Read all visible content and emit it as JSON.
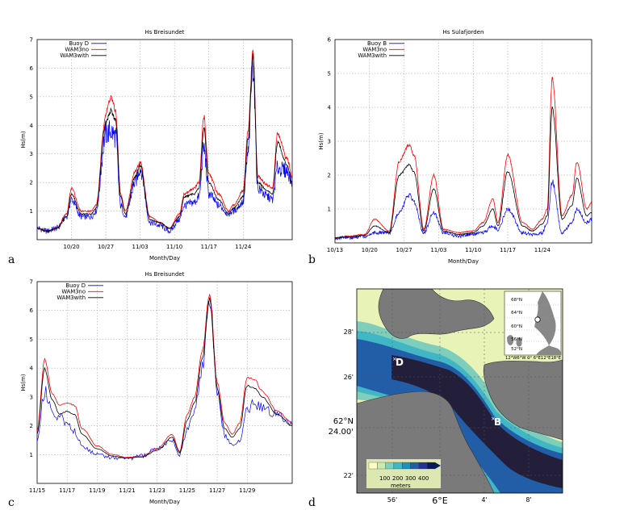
{
  "panels": [
    {
      "letter": "a",
      "chart_data": {
        "type": "line",
        "title": "Hs Breisundet",
        "xlabel": "Month/Day",
        "ylabel": "Hs(m)",
        "xlim": [
          "2023-10-13",
          "2023-12-04"
        ],
        "ylim": [
          0,
          7
        ],
        "yticks": [
          1,
          2,
          3,
          4,
          5,
          6,
          7
        ],
        "xticks": [
          "10/20",
          "10/27",
          "11/03",
          "11/10",
          "11/17",
          "11/24"
        ],
        "grid": true,
        "legend_position": "top-left",
        "series": [
          {
            "name": "Buoy  D",
            "color": "#0000ff",
            "noise": 0.35,
            "x": [
              "2023-10-13",
              "2023-10-15",
              "2023-10-17",
              "2023-10-19",
              "2023-10-20",
              "2023-10-22",
              "2023-10-24",
              "2023-10-25",
              "2023-10-27",
              "2023-10-28",
              "2023-10-29",
              "2023-10-30",
              "2023-10-31",
              "2023-11-02",
              "2023-11-03",
              "2023-11-05",
              "2023-11-07",
              "2023-11-09",
              "2023-11-11",
              "2023-11-12",
              "2023-11-14",
              "2023-11-15",
              "2023-11-16",
              "2023-11-17",
              "2023-11-19",
              "2023-11-21",
              "2023-11-22",
              "2023-11-24",
              "2023-11-25",
              "2023-11-26",
              "2023-11-27",
              "2023-11-29",
              "2023-11-30",
              "2023-12-01",
              "2023-12-03",
              "2023-12-04"
            ],
            "y": [
              0.4,
              0.3,
              0.4,
              0.8,
              1.4,
              0.8,
              0.8,
              1.0,
              3.7,
              3.8,
              3.6,
              1.2,
              0.8,
              2.0,
              2.5,
              0.6,
              0.5,
              0.3,
              0.7,
              1.2,
              1.3,
              1.5,
              3.2,
              1.6,
              1.2,
              0.9,
              1.0,
              1.3,
              3.0,
              6.2,
              1.8,
              1.5,
              1.4,
              2.5,
              2.4,
              2.0
            ]
          },
          {
            "name": "WAM3no",
            "color": "#ff0000",
            "noise": 0.08,
            "x": [
              "2023-10-13",
              "2023-10-15",
              "2023-10-17",
              "2023-10-19",
              "2023-10-20",
              "2023-10-22",
              "2023-10-24",
              "2023-10-25",
              "2023-10-27",
              "2023-10-28",
              "2023-10-29",
              "2023-10-30",
              "2023-10-31",
              "2023-11-02",
              "2023-11-03",
              "2023-11-05",
              "2023-11-07",
              "2023-11-09",
              "2023-11-11",
              "2023-11-12",
              "2023-11-14",
              "2023-11-15",
              "2023-11-16",
              "2023-11-17",
              "2023-11-19",
              "2023-11-21",
              "2023-11-22",
              "2023-11-24",
              "2023-11-25",
              "2023-11-26",
              "2023-11-27",
              "2023-11-29",
              "2023-11-30",
              "2023-12-01",
              "2023-12-03",
              "2023-12-04"
            ],
            "y": [
              0.4,
              0.3,
              0.4,
              0.9,
              1.8,
              1.0,
              1.0,
              1.2,
              4.4,
              5.0,
              4.5,
              1.6,
              1.0,
              2.4,
              2.7,
              0.8,
              0.6,
              0.4,
              0.9,
              1.6,
              1.8,
              2.0,
              4.3,
              2.3,
              1.6,
              1.0,
              1.2,
              1.7,
              3.8,
              6.6,
              2.2,
              1.9,
              1.8,
              3.7,
              2.8,
              2.2
            ]
          },
          {
            "name": "WAM3with",
            "color": "#000000",
            "noise": 0.06,
            "x": [
              "2023-10-13",
              "2023-10-15",
              "2023-10-17",
              "2023-10-19",
              "2023-10-20",
              "2023-10-22",
              "2023-10-24",
              "2023-10-25",
              "2023-10-27",
              "2023-10-28",
              "2023-10-29",
              "2023-10-30",
              "2023-10-31",
              "2023-11-02",
              "2023-11-03",
              "2023-11-05",
              "2023-11-07",
              "2023-11-09",
              "2023-11-11",
              "2023-11-12",
              "2023-11-14",
              "2023-11-15",
              "2023-11-16",
              "2023-11-17",
              "2023-11-19",
              "2023-11-21",
              "2023-11-22",
              "2023-11-24",
              "2023-11-25",
              "2023-11-26",
              "2023-11-27",
              "2023-11-29",
              "2023-11-30",
              "2023-12-01",
              "2023-12-03",
              "2023-12-04"
            ],
            "y": [
              0.4,
              0.3,
              0.4,
              0.8,
              1.6,
              0.9,
              0.9,
              1.1,
              4.1,
              4.5,
              4.2,
              1.5,
              0.9,
              2.2,
              2.6,
              0.7,
              0.6,
              0.4,
              0.8,
              1.5,
              1.6,
              1.8,
              3.9,
              2.0,
              1.4,
              0.9,
              1.1,
              1.5,
              3.5,
              6.4,
              2.0,
              1.7,
              1.6,
              3.4,
              2.6,
              2.0
            ]
          }
        ]
      }
    },
    {
      "letter": "b",
      "chart_data": {
        "type": "line",
        "title": "Hs Sulafjorden",
        "xlabel": "Month/Day",
        "ylabel": "Hs(m)",
        "xlim": [
          "2023-10-13",
          "2023-12-04"
        ],
        "ylim": [
          0,
          6
        ],
        "yticks": [
          1,
          2,
          3,
          4,
          5,
          6
        ],
        "xticks": [
          "10/13",
          "10/20",
          "10/27",
          "11/03",
          "11/10",
          "11/17",
          "11/24"
        ],
        "grid": true,
        "legend_position": "top-left",
        "series": [
          {
            "name": "Buoy  B",
            "color": "#0000ff",
            "noise": 0.18,
            "x": [
              "2023-10-13",
              "2023-10-16",
              "2023-10-19",
              "2023-10-21",
              "2023-10-24",
              "2023-10-26",
              "2023-10-28",
              "2023-10-29",
              "2023-10-31",
              "2023-11-02",
              "2023-11-04",
              "2023-11-07",
              "2023-11-10",
              "2023-11-12",
              "2023-11-14",
              "2023-11-15",
              "2023-11-17",
              "2023-11-20",
              "2023-11-22",
              "2023-11-24",
              "2023-11-25",
              "2023-11-26",
              "2023-11-28",
              "2023-11-30",
              "2023-12-01",
              "2023-12-03",
              "2023-12-04"
            ],
            "y": [
              0.15,
              0.15,
              0.2,
              0.3,
              0.3,
              0.9,
              1.4,
              1.2,
              0.3,
              0.9,
              0.3,
              0.2,
              0.25,
              0.3,
              0.5,
              0.4,
              1.0,
              0.3,
              0.25,
              0.3,
              0.6,
              1.8,
              0.3,
              0.6,
              1.0,
              0.6,
              0.7
            ]
          },
          {
            "name": "WAM3no",
            "color": "#ff0000",
            "noise": 0.05,
            "x": [
              "2023-10-13",
              "2023-10-16",
              "2023-10-19",
              "2023-10-21",
              "2023-10-24",
              "2023-10-26",
              "2023-10-28",
              "2023-10-29",
              "2023-10-31",
              "2023-11-02",
              "2023-11-04",
              "2023-11-07",
              "2023-11-10",
              "2023-11-12",
              "2023-11-14",
              "2023-11-15",
              "2023-11-17",
              "2023-11-20",
              "2023-11-22",
              "2023-11-24",
              "2023-11-25",
              "2023-11-26",
              "2023-11-28",
              "2023-11-30",
              "2023-12-01",
              "2023-12-03",
              "2023-12-04"
            ],
            "y": [
              0.15,
              0.2,
              0.25,
              0.7,
              0.35,
              2.4,
              2.9,
              2.6,
              0.4,
              2.0,
              0.4,
              0.3,
              0.35,
              0.6,
              1.3,
              0.6,
              2.6,
              0.6,
              0.4,
              0.7,
              1.0,
              4.9,
              0.8,
              1.4,
              2.4,
              1.0,
              1.2
            ]
          },
          {
            "name": "WAM3with",
            "color": "#000000",
            "noise": 0.04,
            "x": [
              "2023-10-13",
              "2023-10-16",
              "2023-10-19",
              "2023-10-21",
              "2023-10-24",
              "2023-10-26",
              "2023-10-28",
              "2023-10-29",
              "2023-10-31",
              "2023-11-02",
              "2023-11-04",
              "2023-11-07",
              "2023-11-10",
              "2023-11-12",
              "2023-11-14",
              "2023-11-15",
              "2023-11-17",
              "2023-11-20",
              "2023-11-22",
              "2023-11-24",
              "2023-11-25",
              "2023-11-26",
              "2023-11-28",
              "2023-11-30",
              "2023-12-01",
              "2023-12-03",
              "2023-12-04"
            ],
            "y": [
              0.15,
              0.18,
              0.22,
              0.5,
              0.3,
              2.0,
              2.3,
              2.1,
              0.35,
              1.6,
              0.35,
              0.25,
              0.3,
              0.5,
              1.0,
              0.5,
              2.1,
              0.5,
              0.35,
              0.55,
              0.8,
              4.0,
              0.7,
              1.1,
              1.9,
              0.8,
              0.9
            ]
          }
        ]
      }
    },
    {
      "letter": "c",
      "chart_data": {
        "type": "line",
        "title": "Hs Breisundet",
        "xlabel": "Month/Day",
        "ylabel": "Hs(m)",
        "xlim": [
          "2023-11-15",
          "2023-12-02"
        ],
        "ylim": [
          0,
          7
        ],
        "yticks": [
          1,
          2,
          3,
          4,
          5,
          6,
          7
        ],
        "xticks": [
          "11/15",
          "11/17",
          "11/19",
          "11/21",
          "11/23",
          "11/25",
          "11/27",
          "11/29"
        ],
        "grid": true,
        "legend_position": "top-right",
        "series": [
          {
            "name": "Buoy  D",
            "color": "#0000ff",
            "noise": 0.22,
            "x": [
              "2023-11-15",
              "2023-11-15T12",
              "2023-11-16",
              "2023-11-16T12",
              "2023-11-17",
              "2023-11-17T12",
              "2023-11-18",
              "2023-11-19",
              "2023-11-20",
              "2023-11-21",
              "2023-11-22",
              "2023-11-23",
              "2023-11-24",
              "2023-11-24T12",
              "2023-11-25",
              "2023-11-25T12",
              "2023-11-26",
              "2023-11-26T12",
              "2023-11-27",
              "2023-11-27T12",
              "2023-11-28",
              "2023-11-28T12",
              "2023-11-29",
              "2023-11-29T12",
              "2023-11-30",
              "2023-12-01",
              "2023-12-02"
            ],
            "y": [
              1.4,
              3.2,
              2.5,
              2.3,
              2.0,
              1.8,
              1.3,
              1.0,
              0.9,
              0.85,
              0.95,
              1.2,
              1.5,
              1.0,
              1.9,
              2.6,
              4.0,
              6.6,
              3.2,
              1.7,
              1.3,
              1.5,
              2.5,
              2.8,
              2.6,
              2.4,
              2.0
            ]
          },
          {
            "name": "WAM3no",
            "color": "#ff0000",
            "noise": 0.03,
            "x": [
              "2023-11-15",
              "2023-11-15T12",
              "2023-11-16",
              "2023-11-16T12",
              "2023-11-17",
              "2023-11-17T12",
              "2023-11-18",
              "2023-11-19",
              "2023-11-20",
              "2023-11-21",
              "2023-11-22",
              "2023-11-23",
              "2023-11-24",
              "2023-11-24T12",
              "2023-11-25",
              "2023-11-25T12",
              "2023-11-26",
              "2023-11-26T12",
              "2023-11-27",
              "2023-11-27T12",
              "2023-11-28",
              "2023-11-28T12",
              "2023-11-29",
              "2023-11-29T12",
              "2023-11-30",
              "2023-12-01",
              "2023-12-02"
            ],
            "y": [
              1.8,
              4.3,
              3.1,
              2.7,
              2.8,
              2.7,
              1.9,
              1.3,
              1.0,
              0.9,
              0.95,
              1.2,
              1.7,
              1.1,
              2.4,
              3.0,
              4.6,
              6.6,
              3.5,
              2.1,
              1.7,
              2.1,
              3.7,
              3.6,
              3.2,
              2.5,
              2.1
            ]
          },
          {
            "name": "WAM3with",
            "color": "#000000",
            "noise": 0.025,
            "x": [
              "2023-11-15",
              "2023-11-15T12",
              "2023-11-16",
              "2023-11-16T12",
              "2023-11-17",
              "2023-11-17T12",
              "2023-11-18",
              "2023-11-19",
              "2023-11-20",
              "2023-11-21",
              "2023-11-22",
              "2023-11-23",
              "2023-11-24",
              "2023-11-24T12",
              "2023-11-25",
              "2023-11-25T12",
              "2023-11-26",
              "2023-11-26T12",
              "2023-11-27",
              "2023-11-27T12",
              "2023-11-28",
              "2023-11-28T12",
              "2023-11-29",
              "2023-11-29T12",
              "2023-11-30",
              "2023-12-01",
              "2023-12-02"
            ],
            "y": [
              1.7,
              4.0,
              2.9,
              2.4,
              2.5,
              2.4,
              1.7,
              1.2,
              0.95,
              0.88,
              0.92,
              1.15,
              1.6,
              1.05,
              2.2,
              2.8,
              4.3,
              6.4,
              3.3,
              1.9,
              1.6,
              1.9,
              3.4,
              3.3,
              3.0,
              2.4,
              2.0
            ]
          }
        ]
      }
    }
  ],
  "map": {
    "letter": "d",
    "lat_ticks": [
      "28'",
      "26'",
      "62°N\n24.00'",
      "22'"
    ],
    "lon_ticks": [
      "56'",
      "6°E",
      "4'",
      "8'"
    ],
    "stations": [
      {
        "label": "D"
      },
      {
        "label": "B"
      }
    ],
    "colorbar": {
      "ticks": [
        "100",
        "200",
        "300",
        "400"
      ],
      "label": "meters",
      "colors": [
        "#fffccc",
        "#c7ebb1",
        "#7fcdbb",
        "#41b6c4",
        "#1d91c0",
        "#225ea8",
        "#253494",
        "#081d58"
      ]
    },
    "inset": {
      "lat_ticks": [
        "68°N",
        "64°N",
        "60°N",
        "56°N",
        "52°N"
      ],
      "lon_ticks": "12°W6°W 0°  6°E12°E18°E"
    },
    "colors": {
      "land": "#7a7a7a",
      "deep": "#231f3a",
      "sea_mid": "#3d4e8e",
      "sea_light": "#7fcdbb",
      "shallow": "#e8f3b8"
    }
  }
}
